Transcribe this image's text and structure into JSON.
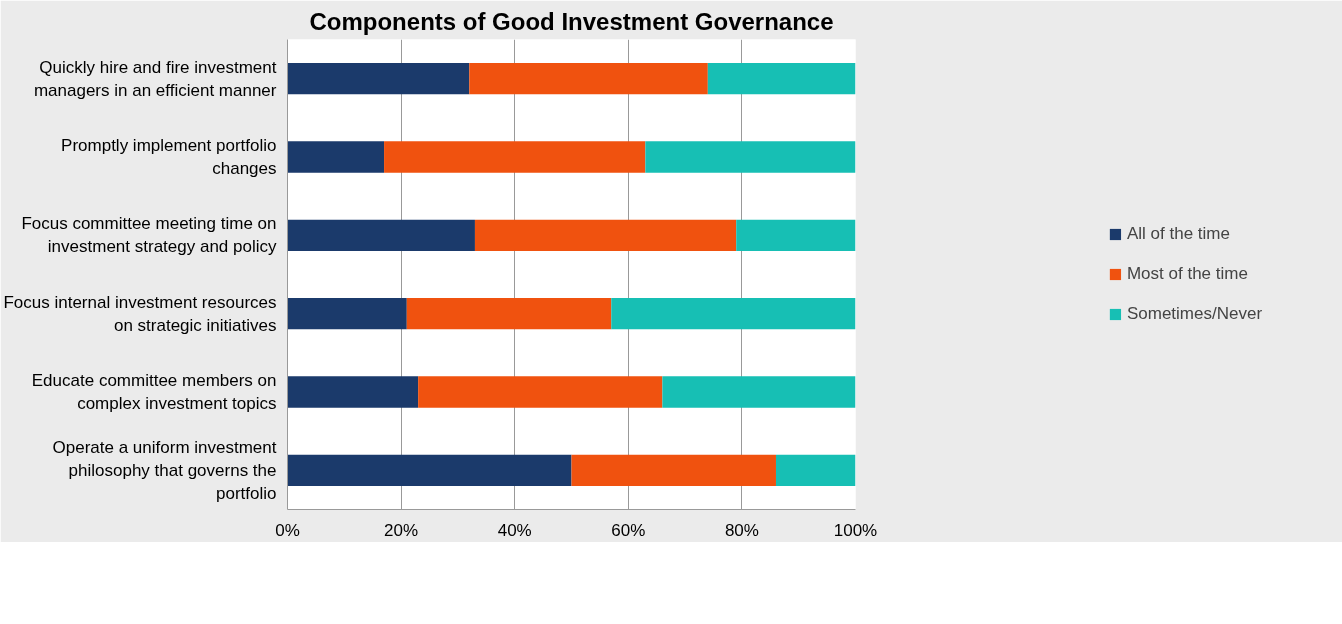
{
  "chart_data": {
    "type": "bar",
    "orientation": "horizontal",
    "stacked": true,
    "title": "Components of Good Investment Governance",
    "categories": [
      "Quickly hire and fire investment managers in an efficient manner",
      "Promptly implement portfolio changes",
      "Focus committee meeting time on investment strategy and policy",
      "Focus internal investment resources on strategic initiatives",
      "Educate committee members on complex investment topics",
      "Operate a uniform investment philosophy that governs the portfolio"
    ],
    "series": [
      {
        "name": "All of the time",
        "color": "#1b3a6b",
        "values": [
          32,
          17,
          33,
          21,
          23,
          50
        ]
      },
      {
        "name": "Most of the time",
        "color": "#f0520f",
        "values": [
          42,
          46,
          46,
          36,
          43,
          36
        ]
      },
      {
        "name": "Sometimes/Never",
        "color": "#17bfb4",
        "values": [
          26,
          37,
          21,
          43,
          34,
          14
        ]
      }
    ],
    "xlim": [
      0,
      100
    ],
    "xticks": [
      {
        "value": 0,
        "label": "0%"
      },
      {
        "value": 20,
        "label": "20%"
      },
      {
        "value": 40,
        "label": "40%"
      },
      {
        "value": 60,
        "label": "60%"
      },
      {
        "value": 80,
        "label": "80%"
      },
      {
        "value": 100,
        "label": "100%"
      }
    ],
    "grid": "x",
    "legend": "right"
  }
}
